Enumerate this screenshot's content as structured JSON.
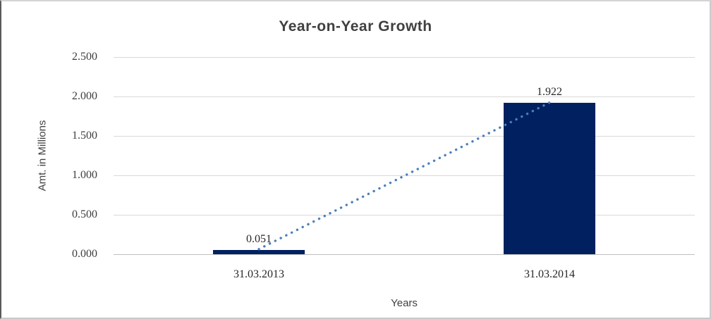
{
  "chart_data": {
    "type": "bar",
    "title": "Year-on-Year Growth",
    "xlabel": "Years",
    "ylabel": "Amt. in Millions",
    "categories": [
      "31.03.2013",
      "31.03.2014"
    ],
    "values": [
      0.051,
      1.922
    ],
    "data_labels": [
      "0.051",
      "1.922"
    ],
    "yticks": [
      "0.000",
      "0.500",
      "1.000",
      "1.500",
      "2.000",
      "2.500"
    ],
    "ylim": [
      0,
      2.5
    ],
    "grid": true,
    "legend": "none",
    "trendline": {
      "type": "linear",
      "style": "dotted",
      "color": "#4a7ebb"
    },
    "colors": {
      "bar_fill": "#002060",
      "gridline": "#d9d9d9",
      "axis_line": "#bfbfbf",
      "title_text": "#404040",
      "label_text": "#262626"
    }
  }
}
